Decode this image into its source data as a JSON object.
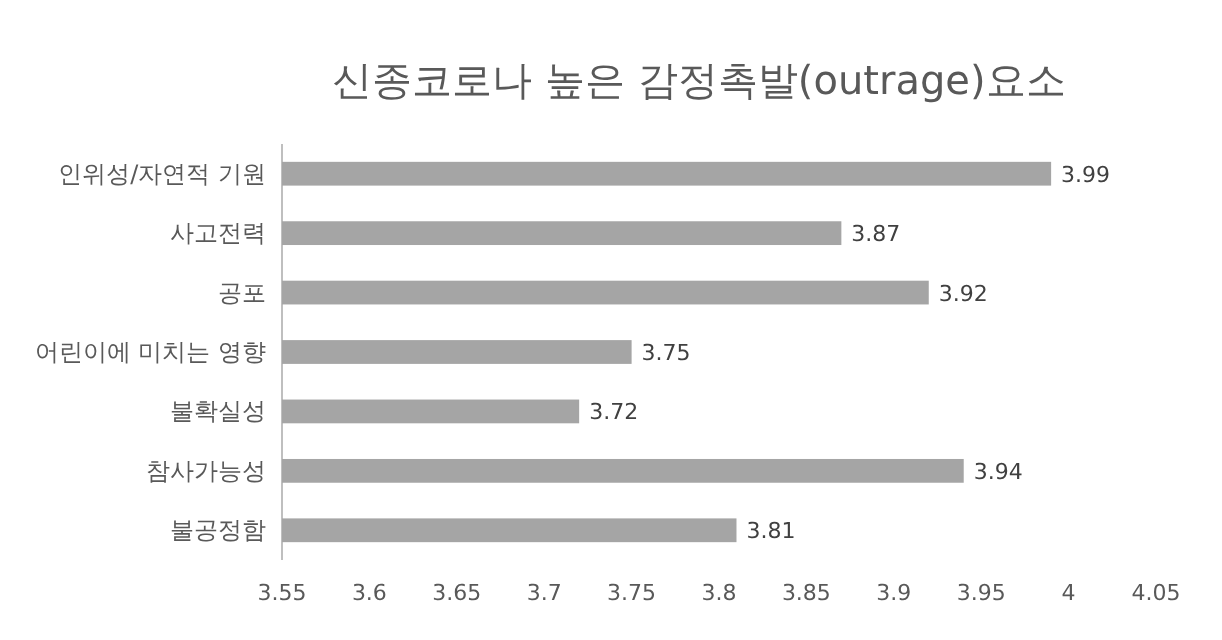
{
  "chart_data": {
    "type": "bar",
    "orientation": "horizontal",
    "title": "신종코로나 높은 감정촉발(outrage)요소",
    "categories": [
      "인위성/자연적 기원",
      "사고전력",
      "공포",
      "어린이에 미치는 영향",
      "불확실성",
      "참사가능성",
      "불공정함"
    ],
    "values": [
      3.99,
      3.87,
      3.92,
      3.75,
      3.72,
      3.94,
      3.81
    ],
    "color": "#a5a5a5",
    "xlim": [
      3.55,
      4.05
    ],
    "xticks": [
      3.55,
      3.6,
      3.65,
      3.7,
      3.75,
      3.8,
      3.85,
      3.9,
      3.95,
      4,
      4.05
    ],
    "data_labels": true,
    "grid": false
  }
}
